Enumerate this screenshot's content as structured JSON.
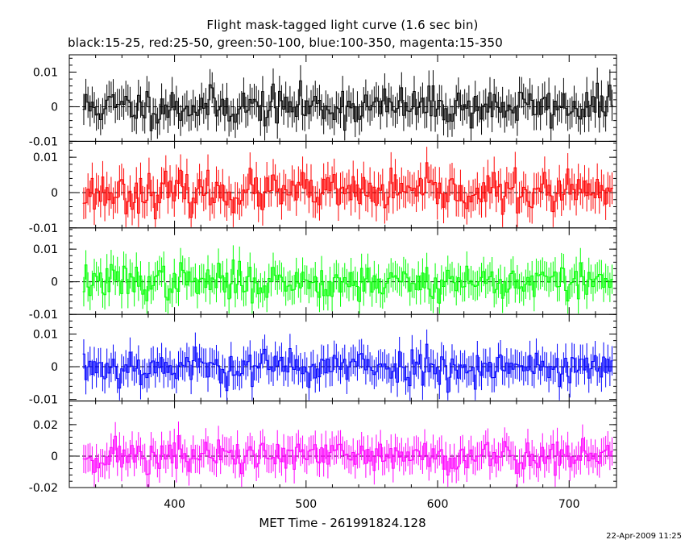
{
  "header": {
    "title": "Flight mask-tagged light curve (1.6 sec bin)",
    "subtitle": "black:15-25, red:25-50, green:50-100, blue:100-350, magenta:15-350"
  },
  "footer": {
    "xlabel": "MET Time - 261991824.128",
    "timestamp": "22-Apr-2009 11:25"
  },
  "chart_data": {
    "type": "line",
    "bin_seconds": 1.6,
    "xlim": [
      320,
      736
    ],
    "x_ticks": [
      400,
      500,
      600,
      700
    ],
    "x_tick_labels": [
      "400",
      "500",
      "600",
      "700"
    ],
    "panels": [
      {
        "name": "black:15-25",
        "color": "#000000",
        "ylim": [
          -0.01,
          0.015
        ],
        "yticks": [
          -0.01,
          0,
          0.01
        ],
        "ytick_labels": [
          "-0.01",
          "0",
          "0.01"
        ],
        "noise": 0.005,
        "seed": 11
      },
      {
        "name": "red:25-50",
        "color": "#ff0000",
        "ylim": [
          -0.01,
          0.0145
        ],
        "yticks": [
          -0.01,
          0,
          0.01
        ],
        "ytick_labels": [
          "-0.01",
          "0",
          "0.01"
        ],
        "noise": 0.005,
        "seed": 23
      },
      {
        "name": "green:50-100",
        "color": "#00ff00",
        "ylim": [
          -0.01,
          0.0165
        ],
        "yticks": [
          -0.01,
          0,
          0.01
        ],
        "ytick_labels": [
          "-0.01",
          "0",
          "0.01"
        ],
        "noise": 0.005,
        "seed": 37
      },
      {
        "name": "blue:100-350",
        "color": "#0000ff",
        "ylim": [
          -0.0105,
          0.016
        ],
        "yticks": [
          -0.01,
          0,
          0.01
        ],
        "ytick_labels": [
          "-0.01",
          "0",
          "0.01"
        ],
        "noise": 0.005,
        "seed": 53
      },
      {
        "name": "magenta:15-350",
        "color": "#ff00ff",
        "ylim": [
          -0.02,
          0.035
        ],
        "yticks": [
          -0.02,
          0,
          0.02
        ],
        "ytick_labels": [
          "-0.02",
          "0",
          "0.02"
        ],
        "noise": 0.01,
        "seed": 71
      }
    ]
  }
}
